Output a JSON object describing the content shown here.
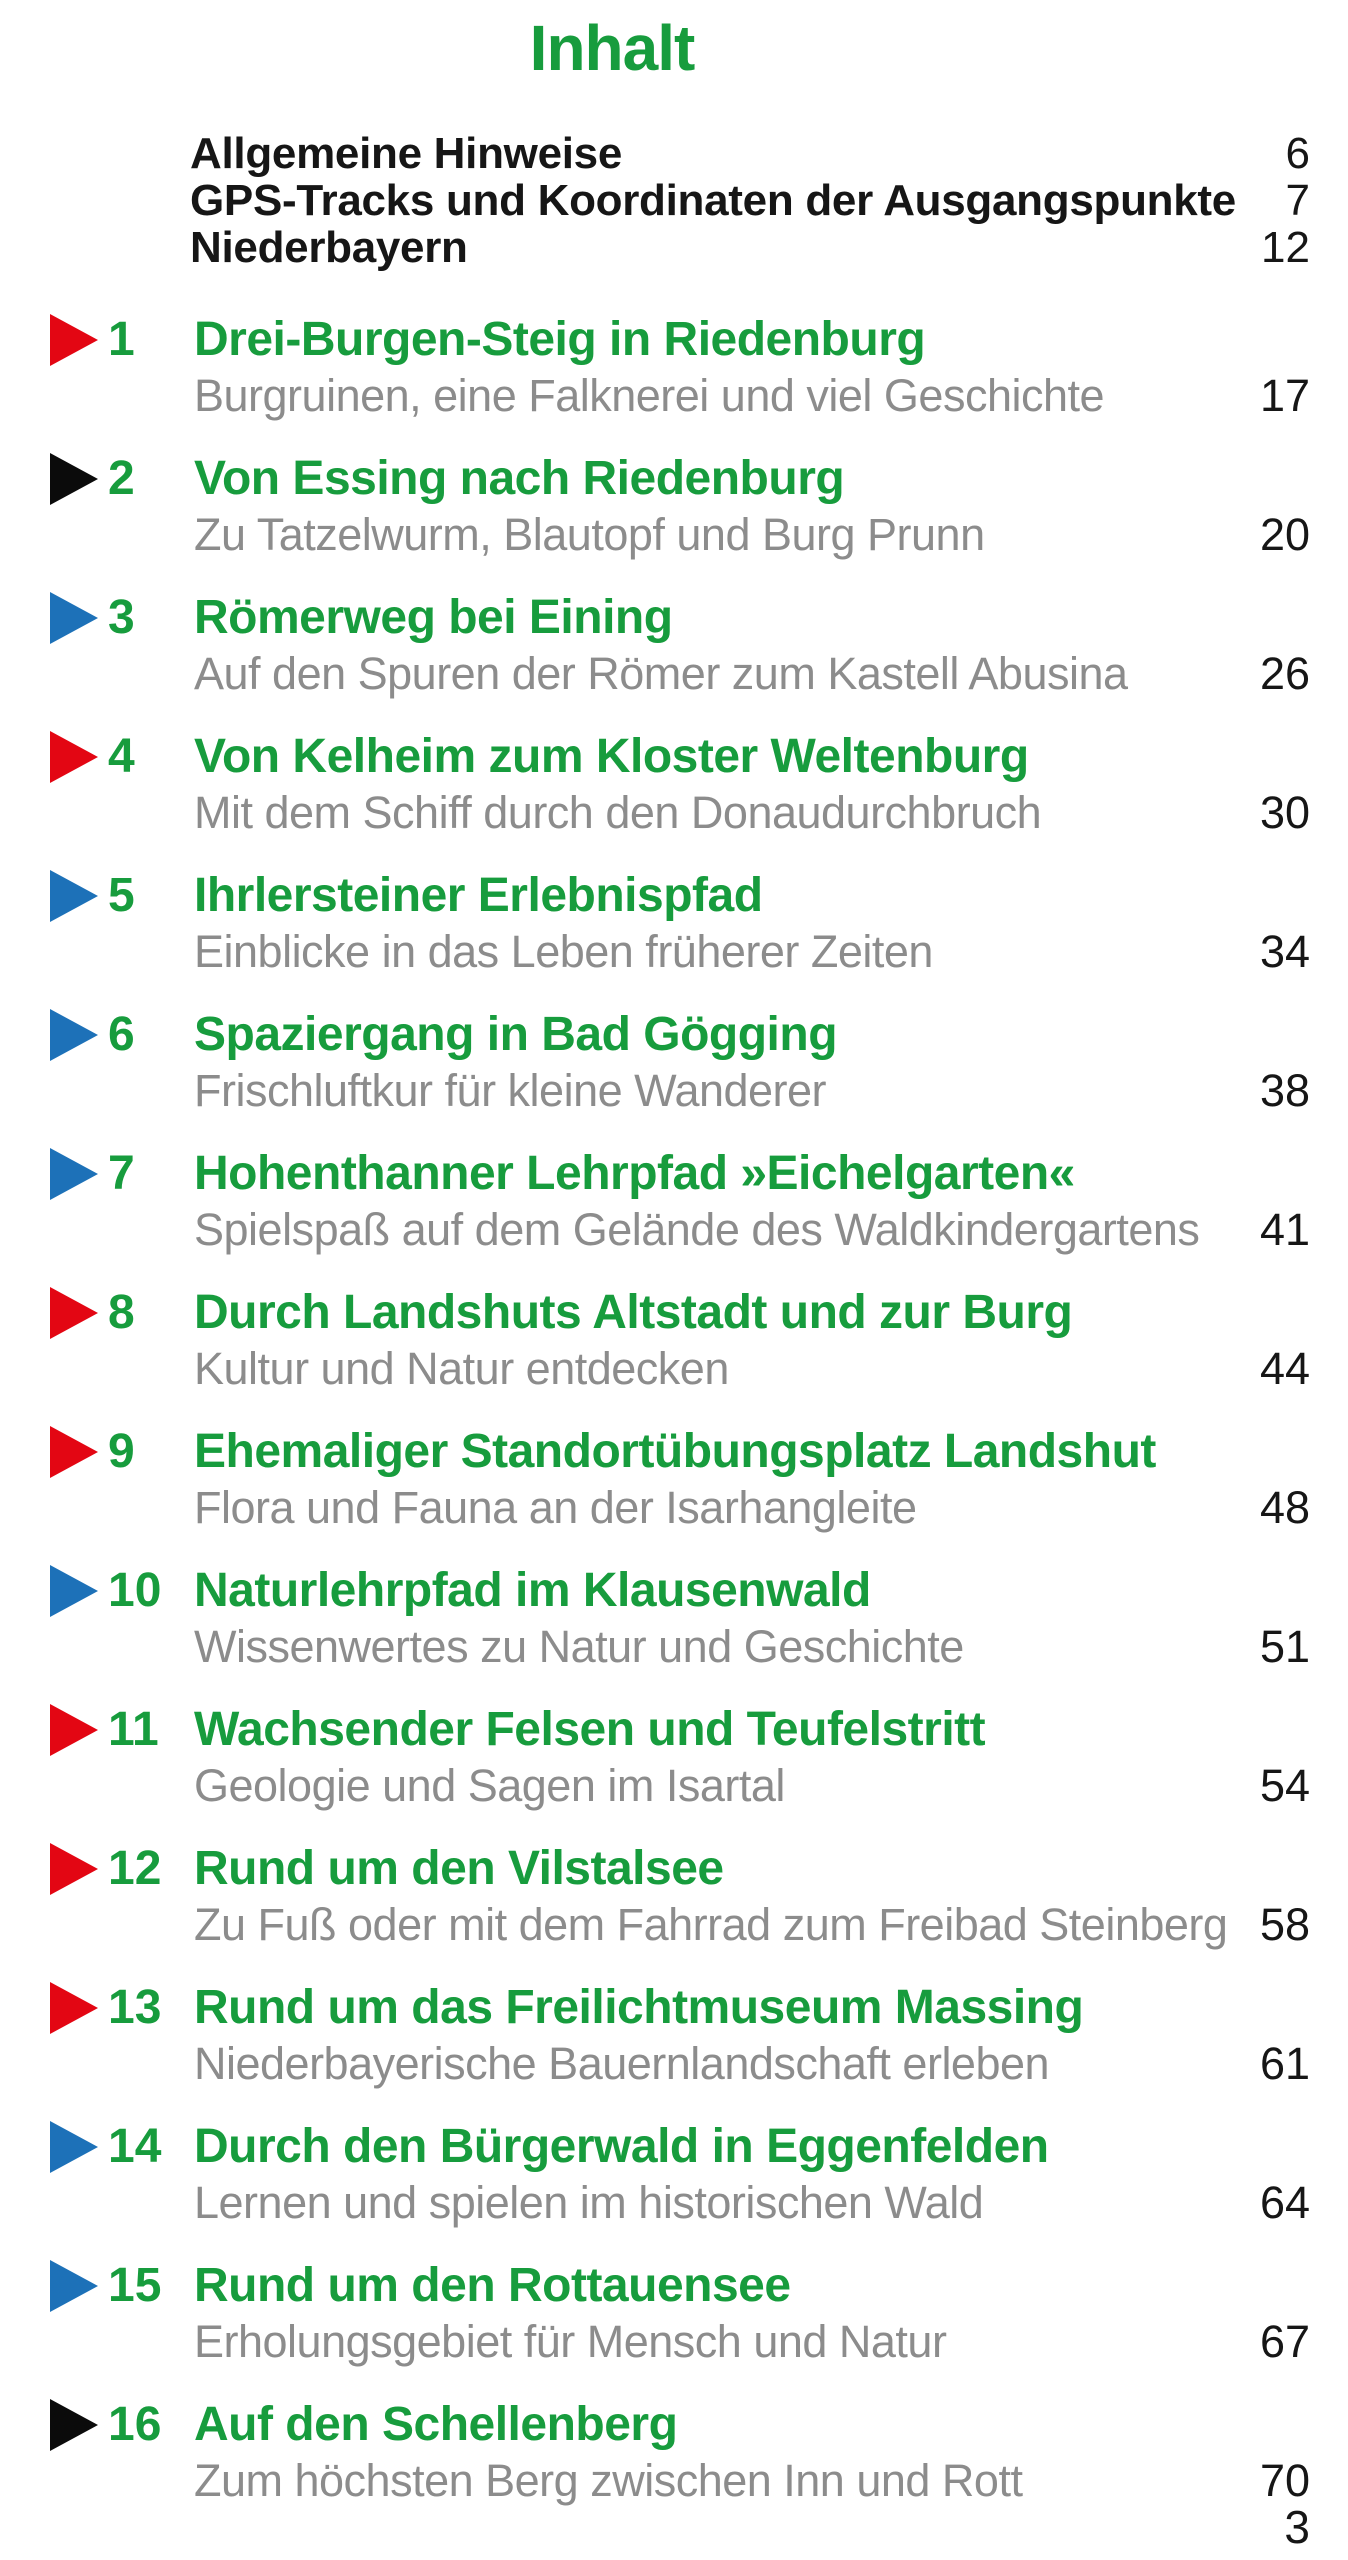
{
  "page": {
    "title": "Inhalt",
    "folio": "3"
  },
  "front_matter": [
    {
      "label": "Allgemeine Hinweise",
      "page": "6"
    },
    {
      "label": "GPS-Tracks und Koordinaten der Ausgangspunkte",
      "page": "7"
    },
    {
      "label": "Niederbayern",
      "page": "12"
    }
  ],
  "entries": [
    {
      "num": "1",
      "arrow_color": "red",
      "arrow_icon": "triangle-right",
      "title": "Drei-Burgen-Steig in Riedenburg",
      "subtitle": "Burgruinen, eine Falknerei und viel Geschichte",
      "page": "17"
    },
    {
      "num": "2",
      "arrow_color": "black",
      "arrow_icon": "triangle-right",
      "title": "Von Essing nach Riedenburg",
      "subtitle": "Zu Tatzelwurm, Blautopf und Burg Prunn",
      "page": "20"
    },
    {
      "num": "3",
      "arrow_color": "blue",
      "arrow_icon": "triangle-right",
      "title": "Römerweg bei Eining",
      "subtitle": "Auf den Spuren der Römer zum Kastell Abusina",
      "page": "26"
    },
    {
      "num": "4",
      "arrow_color": "red",
      "arrow_icon": "triangle-right",
      "title": "Von Kelheim zum Kloster Weltenburg",
      "subtitle": "Mit dem Schiff durch den Donaudurchbruch",
      "page": "30"
    },
    {
      "num": "5",
      "arrow_color": "blue",
      "arrow_icon": "triangle-right",
      "title": "Ihrlersteiner Erlebnispfad",
      "subtitle": "Einblicke in das Leben früherer Zeiten",
      "page": "34"
    },
    {
      "num": "6",
      "arrow_color": "blue",
      "arrow_icon": "triangle-right",
      "title": "Spaziergang in Bad Gögging",
      "subtitle": "Frischluftkur für kleine Wanderer",
      "page": "38"
    },
    {
      "num": "7",
      "arrow_color": "blue",
      "arrow_icon": "triangle-right",
      "title": "Hohenthanner Lehrpfad »Eichelgarten«",
      "subtitle": "Spielspaß auf dem Gelände des Waldkindergartens",
      "page": "41"
    },
    {
      "num": "8",
      "arrow_color": "red",
      "arrow_icon": "triangle-right",
      "title": "Durch Landshuts Altstadt und zur Burg",
      "subtitle": "Kultur und Natur entdecken",
      "page": "44"
    },
    {
      "num": "9",
      "arrow_color": "red",
      "arrow_icon": "triangle-right",
      "title": "Ehemaliger Standortübungsplatz Landshut",
      "subtitle": "Flora und Fauna an der Isarhangleite",
      "page": "48"
    },
    {
      "num": "10",
      "arrow_color": "blue",
      "arrow_icon": "triangle-right",
      "title": "Naturlehrpfad im Klausenwald",
      "subtitle": "Wissenwertes zu Natur und Geschichte",
      "page": "51"
    },
    {
      "num": "11",
      "arrow_color": "red",
      "arrow_icon": "triangle-right",
      "title": "Wachsender Felsen und Teufelstritt",
      "subtitle": "Geologie und Sagen im Isartal",
      "page": "54"
    },
    {
      "num": "12",
      "arrow_color": "red",
      "arrow_icon": "triangle-right",
      "title": "Rund um den Vilstalsee",
      "subtitle": "Zu Fuß oder mit dem Fahrrad zum Freibad Steinberg",
      "page": "58"
    },
    {
      "num": "13",
      "arrow_color": "red",
      "arrow_icon": "triangle-right",
      "title": "Rund um das Freilichtmuseum Massing",
      "subtitle": "Niederbayerische Bauernlandschaft erleben",
      "page": "61"
    },
    {
      "num": "14",
      "arrow_color": "blue",
      "arrow_icon": "triangle-right",
      "title": "Durch den Bürgerwald in Eggenfelden",
      "subtitle": "Lernen und spielen im historischen Wald",
      "page": "64"
    },
    {
      "num": "15",
      "arrow_color": "blue",
      "arrow_icon": "triangle-right",
      "title": "Rund um den Rottauensee",
      "subtitle": "Erholungsgebiet für Mensch und Natur",
      "page": "67"
    },
    {
      "num": "16",
      "arrow_color": "black",
      "arrow_icon": "triangle-right",
      "title": "Auf den Schellenberg",
      "subtitle": "Zum höchsten Berg zwischen Inn und Rott",
      "page": "70"
    }
  ],
  "colors": {
    "green": "#179c3d",
    "red": "#e30613",
    "blue": "#1d71b8",
    "black": "#0b0b0b",
    "ink": "#161616",
    "gray": "#8c8c8c",
    "background": "#ffffff"
  }
}
